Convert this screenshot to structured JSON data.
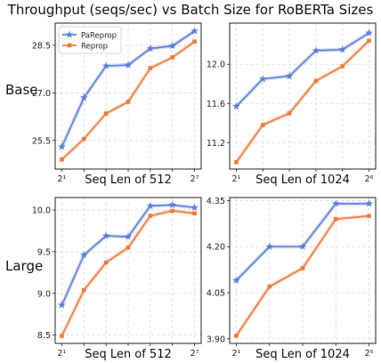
{
  "title": "Throughput (seqs/sec) vs Batch Size for RoBERTa Sizes",
  "row_labels": [
    "Base",
    "Large"
  ],
  "colors": {
    "pareprop": "#5b7fd8",
    "reprop": "#ec7a3c",
    "grid": "#d9d9d9"
  },
  "chart_data": [
    {
      "type": "line",
      "row": "Base",
      "xlabel": "Seq Len of 512",
      "x": [
        1,
        2,
        3,
        4,
        5,
        6,
        7
      ],
      "x_ticks": [
        {
          "x": 1,
          "label": "2¹"
        },
        {
          "x": 7,
          "label": "2⁷"
        }
      ],
      "ylim": [
        24.6,
        29.2
      ],
      "y_ticks": [
        {
          "v": 25.5,
          "label": "25.5"
        },
        {
          "v": 27.0,
          "label": "27.0"
        },
        {
          "v": 28.5,
          "label": "28.5"
        }
      ],
      "grid": true,
      "legend": "top-left",
      "series": [
        {
          "name": "PaReprop",
          "marker": "star",
          "values": [
            25.3,
            26.85,
            27.85,
            27.88,
            28.4,
            28.48,
            28.95
          ]
        },
        {
          "name": "Reprop",
          "marker": "square",
          "values": [
            24.9,
            25.55,
            26.35,
            26.72,
            27.78,
            28.12,
            28.62
          ]
        }
      ]
    },
    {
      "type": "line",
      "row": "Base",
      "xlabel": "Seq Len of 1024",
      "x": [
        1,
        2,
        3,
        4,
        5,
        6
      ],
      "x_ticks": [
        {
          "x": 1,
          "label": "2¹"
        },
        {
          "x": 6,
          "label": "2⁶"
        }
      ],
      "ylim": [
        10.93,
        12.42
      ],
      "y_ticks": [
        {
          "v": 11.2,
          "label": "11.2"
        },
        {
          "v": 11.6,
          "label": "11.6"
        },
        {
          "v": 12.0,
          "label": "12.0"
        }
      ],
      "grid": true,
      "legend": "none",
      "series": [
        {
          "name": "PaReprop",
          "marker": "star",
          "values": [
            11.57,
            11.85,
            11.88,
            12.14,
            12.15,
            12.32
          ]
        },
        {
          "name": "Reprop",
          "marker": "square",
          "values": [
            11.0,
            11.38,
            11.5,
            11.83,
            11.98,
            12.24
          ]
        }
      ]
    },
    {
      "type": "line",
      "row": "Large",
      "xlabel": "Seq Len of 512",
      "x": [
        1,
        2,
        3,
        4,
        5,
        6,
        7
      ],
      "x_ticks": [
        {
          "x": 1,
          "label": "2¹"
        },
        {
          "x": 7,
          "label": "2⁷"
        }
      ],
      "ylim": [
        8.4,
        10.15
      ],
      "y_ticks": [
        {
          "v": 8.5,
          "label": "8.5"
        },
        {
          "v": 9.0,
          "label": "9.0"
        },
        {
          "v": 9.5,
          "label": "9.5"
        },
        {
          "v": 10.0,
          "label": "10.0"
        }
      ],
      "grid": true,
      "legend": "none",
      "series": [
        {
          "name": "PaReprop",
          "marker": "star",
          "values": [
            8.86,
            9.46,
            9.69,
            9.68,
            10.05,
            10.06,
            10.03
          ]
        },
        {
          "name": "Reprop",
          "marker": "square",
          "values": [
            8.49,
            9.04,
            9.37,
            9.55,
            9.93,
            9.99,
            9.96
          ]
        }
      ]
    },
    {
      "type": "line",
      "row": "Large",
      "xlabel": "Seq Len of 1024",
      "x": [
        1,
        2,
        3,
        4,
        5
      ],
      "x_ticks": [
        {
          "x": 1,
          "label": "2¹"
        },
        {
          "x": 5,
          "label": "2⁵"
        }
      ],
      "ylim": [
        3.885,
        4.36
      ],
      "y_ticks": [
        {
          "v": 3.9,
          "label": "3.90"
        },
        {
          "v": 4.05,
          "label": "4.05"
        },
        {
          "v": 4.2,
          "label": "4.20"
        },
        {
          "v": 4.35,
          "label": "4.35"
        }
      ],
      "grid": true,
      "legend": "none",
      "series": [
        {
          "name": "PaReprop",
          "marker": "star",
          "values": [
            4.09,
            4.2,
            4.2,
            4.34,
            4.34
          ]
        },
        {
          "name": "Reprop",
          "marker": "square",
          "values": [
            3.91,
            4.07,
            4.13,
            4.29,
            4.3
          ]
        }
      ]
    }
  ]
}
